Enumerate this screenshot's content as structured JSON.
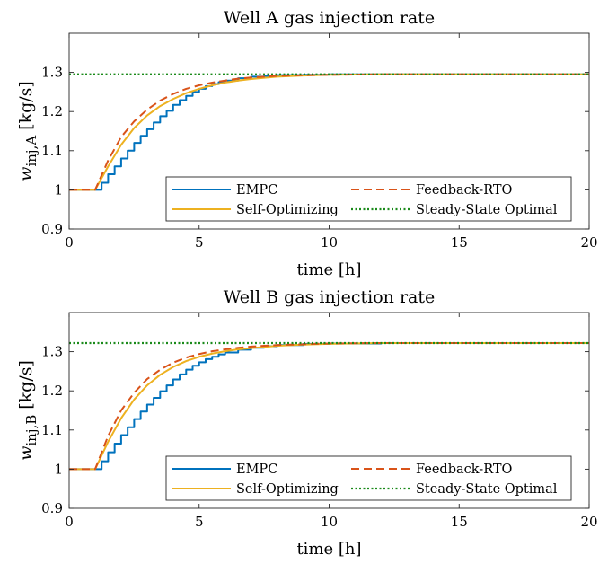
{
  "chart_data": [
    {
      "type": "line",
      "title": "Well A gas injection rate",
      "xlabel": "time [h]",
      "ylabel": {
        "symbol": "w",
        "subscript": "inj,A",
        "unit": "[kg/s]"
      },
      "xlim": [
        0,
        20
      ],
      "ylim": [
        0.9,
        1.4
      ],
      "xticks": [
        "0",
        "5",
        "10",
        "15",
        "20"
      ],
      "yticks": [
        "0.9",
        "1",
        "1.1",
        "1.2",
        "1.3"
      ],
      "grid": false,
      "legend_position": "bottom-right",
      "y_initial": 1.0,
      "y_final": 1.295,
      "series": [
        {
          "name": "EMPC",
          "color": "#0072BD",
          "style": "solid",
          "x": [
            0,
            1,
            1.25,
            1.5,
            1.75,
            2,
            2.25,
            2.5,
            2.75,
            3,
            3.25,
            3.5,
            3.75,
            4,
            4.25,
            4.5,
            4.75,
            5,
            5.25,
            5.5,
            5.75,
            6,
            6.5,
            7,
            7.5,
            8,
            9,
            10,
            12,
            15,
            20
          ],
          "y": [
            1.0,
            1.0,
            1.018,
            1.04,
            1.06,
            1.08,
            1.1,
            1.12,
            1.138,
            1.155,
            1.172,
            1.188,
            1.202,
            1.217,
            1.229,
            1.24,
            1.25,
            1.258,
            1.265,
            1.27,
            1.275,
            1.279,
            1.285,
            1.289,
            1.291,
            1.293,
            1.294,
            1.295,
            1.295,
            1.295,
            1.295
          ]
        },
        {
          "name": "Feedback-RTO",
          "color": "#D95319",
          "style": "dashed",
          "x": [
            0,
            1,
            1.5,
            2,
            2.5,
            3,
            3.5,
            4,
            4.5,
            5,
            5.5,
            6,
            6.5,
            7,
            8,
            9,
            10,
            12,
            15,
            20
          ],
          "y": [
            1.0,
            1.0,
            1.075,
            1.135,
            1.175,
            1.205,
            1.228,
            1.245,
            1.258,
            1.267,
            1.274,
            1.279,
            1.284,
            1.287,
            1.291,
            1.293,
            1.294,
            1.295,
            1.295,
            1.295
          ]
        },
        {
          "name": "Self-Optimizing",
          "color": "#EDB120",
          "style": "solid",
          "x": [
            0,
            1,
            1.5,
            2,
            2.5,
            3,
            3.5,
            4,
            4.5,
            5,
            5.5,
            6,
            6.5,
            7,
            8,
            9,
            10,
            12,
            15,
            20
          ],
          "y": [
            1.0,
            1.0,
            1.06,
            1.115,
            1.158,
            1.19,
            1.214,
            1.232,
            1.247,
            1.258,
            1.267,
            1.274,
            1.279,
            1.283,
            1.289,
            1.292,
            1.294,
            1.295,
            1.295,
            1.295
          ]
        },
        {
          "name": "Steady-State Optimal",
          "color": "#1A8A1A",
          "style": "dotted",
          "x": [
            0,
            20
          ],
          "y": [
            1.295,
            1.295
          ]
        }
      ]
    },
    {
      "type": "line",
      "title": "Well B gas injection rate",
      "xlabel": "time [h]",
      "ylabel": {
        "symbol": "w",
        "subscript": "inj,B",
        "unit": "[kg/s]"
      },
      "xlim": [
        0,
        20
      ],
      "ylim": [
        0.9,
        1.4
      ],
      "xticks": [
        "0",
        "5",
        "10",
        "15",
        "20"
      ],
      "yticks": [
        "0.9",
        "1",
        "1.1",
        "1.2",
        "1.3"
      ],
      "grid": false,
      "legend_position": "bottom-right",
      "y_initial": 1.0,
      "y_final": 1.322,
      "series": [
        {
          "name": "EMPC",
          "color": "#0072BD",
          "style": "solid",
          "x": [
            0,
            1,
            1.25,
            1.5,
            1.75,
            2,
            2.25,
            2.5,
            2.75,
            3,
            3.25,
            3.5,
            3.75,
            4,
            4.25,
            4.5,
            4.75,
            5,
            5.25,
            5.5,
            5.75,
            6,
            6.5,
            7,
            7.5,
            8,
            9,
            10,
            12,
            15,
            20
          ],
          "y": [
            1.0,
            1.0,
            1.02,
            1.043,
            1.065,
            1.087,
            1.107,
            1.128,
            1.147,
            1.165,
            1.182,
            1.199,
            1.214,
            1.229,
            1.242,
            1.254,
            1.264,
            1.273,
            1.281,
            1.287,
            1.293,
            1.298,
            1.305,
            1.31,
            1.314,
            1.317,
            1.32,
            1.321,
            1.322,
            1.322,
            1.322
          ]
        },
        {
          "name": "Feedback-RTO",
          "color": "#D95319",
          "style": "dashed",
          "x": [
            0,
            1,
            1.5,
            2,
            2.5,
            3,
            3.5,
            4,
            4.5,
            5,
            5.5,
            6,
            6.5,
            7,
            8,
            9,
            10,
            12,
            15,
            20
          ],
          "y": [
            1.0,
            1.0,
            1.085,
            1.15,
            1.195,
            1.23,
            1.254,
            1.272,
            1.285,
            1.294,
            1.301,
            1.306,
            1.31,
            1.313,
            1.317,
            1.319,
            1.321,
            1.322,
            1.322,
            1.322
          ]
        },
        {
          "name": "Self-Optimizing",
          "color": "#EDB120",
          "style": "solid",
          "x": [
            0,
            1,
            1.5,
            2,
            2.5,
            3,
            3.5,
            4,
            4.5,
            5,
            5.5,
            6,
            6.5,
            7,
            8,
            9,
            10,
            12,
            15,
            20
          ],
          "y": [
            1.0,
            1.0,
            1.07,
            1.13,
            1.178,
            1.214,
            1.241,
            1.261,
            1.276,
            1.287,
            1.295,
            1.301,
            1.306,
            1.309,
            1.315,
            1.318,
            1.32,
            1.322,
            1.322,
            1.322
          ]
        },
        {
          "name": "Steady-State Optimal",
          "color": "#1A8A1A",
          "style": "dotted",
          "x": [
            0,
            20
          ],
          "y": [
            1.322,
            1.322
          ]
        }
      ]
    }
  ]
}
